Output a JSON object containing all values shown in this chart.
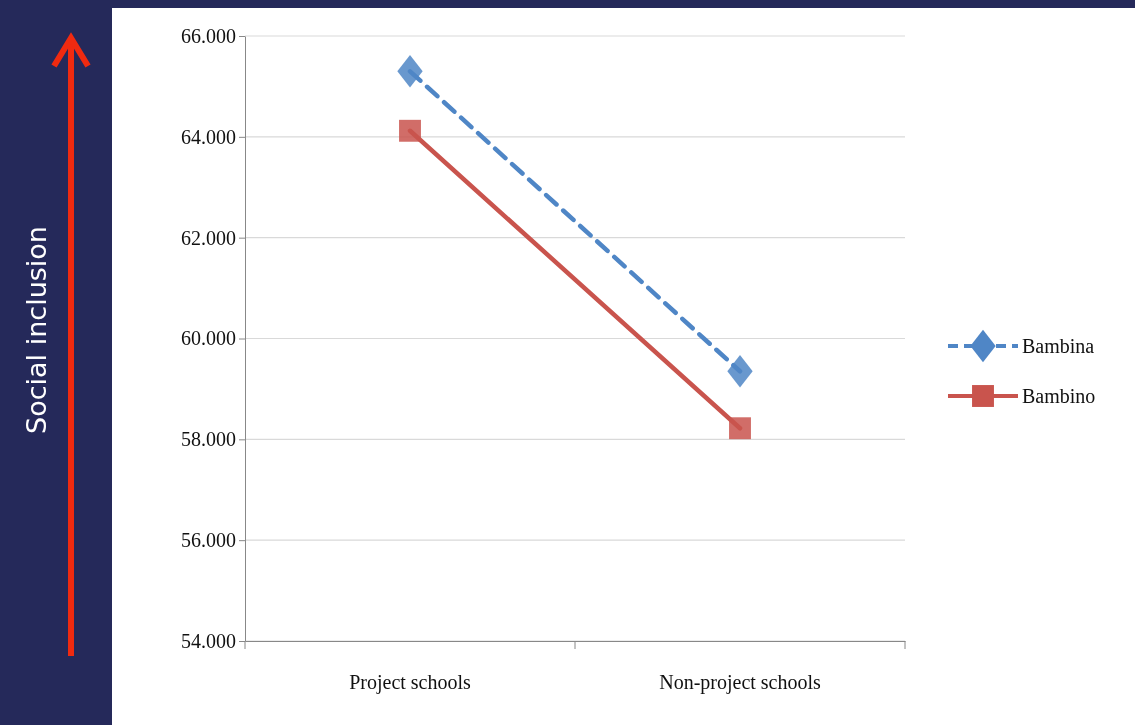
{
  "chart_data": {
    "type": "line",
    "ylabel": "Social inclusion",
    "categories": [
      "Project schools",
      "Non-project schools"
    ],
    "series": [
      {
        "name": "Bambina",
        "color": "#4f86c6",
        "values": [
          65.3,
          59.35
        ],
        "marker": "diamond",
        "line_style": "dashed"
      },
      {
        "name": "Bambino",
        "color": "#c9544d",
        "values": [
          64.12,
          58.22
        ],
        "marker": "square",
        "line_style": "solid"
      }
    ],
    "ylim": [
      54,
      66
    ],
    "yticks": [
      {
        "value": 54,
        "label": "54.000"
      },
      {
        "value": 56,
        "label": "56.000"
      },
      {
        "value": 58,
        "label": "58.000"
      },
      {
        "value": 60,
        "label": "60.000"
      },
      {
        "value": 62,
        "label": "62.000"
      },
      {
        "value": 64,
        "label": "64.000"
      },
      {
        "value": 66,
        "label": "66.000"
      }
    ],
    "grid": "y",
    "legend": "right"
  }
}
